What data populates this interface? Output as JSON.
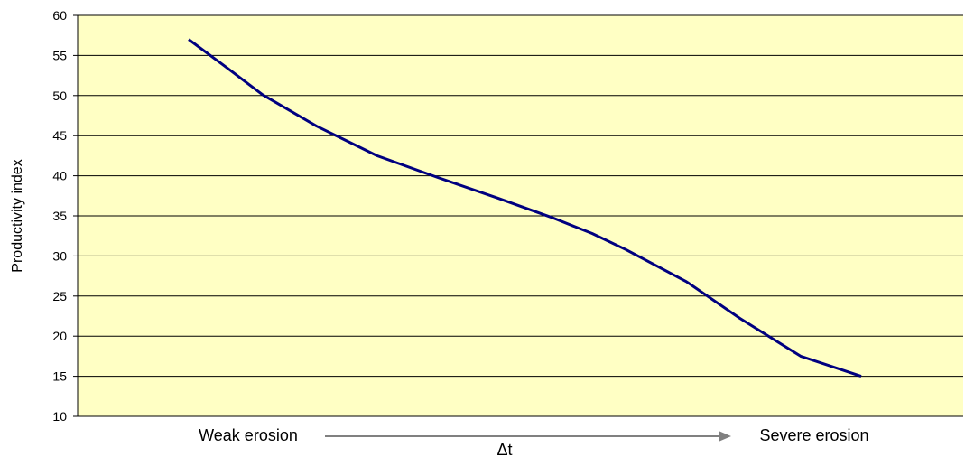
{
  "chart_data": {
    "type": "line",
    "title": "",
    "xlabel": "",
    "ylabel": "Productivity index",
    "ylim": [
      10,
      60
    ],
    "yticks": [
      10,
      15,
      20,
      25,
      30,
      35,
      40,
      45,
      50,
      55,
      60
    ],
    "grid": "horizontal",
    "legend": "none",
    "x_range": [
      0,
      1
    ],
    "series": [
      {
        "color": "#000080",
        "x": [
          0,
          0.05,
          0.11,
          0.19,
          0.28,
          0.37,
          0.46,
          0.54,
          0.6,
          0.65,
          0.74,
          0.82,
          0.91,
          1.0
        ],
        "values": [
          57,
          53.9,
          50.1,
          46.2,
          42.5,
          39.8,
          37.2,
          34.8,
          32.8,
          30.8,
          26.8,
          22.2,
          17.5,
          15
        ]
      }
    ],
    "annotations": {
      "left_label": "Weak erosion",
      "right_label": "Severe erosion",
      "arrow_label": "Δt"
    },
    "colors": {
      "plot_background": "#FFFFC4",
      "gridline": "#000000",
      "line": "#000080",
      "arrow": "#808080"
    }
  }
}
